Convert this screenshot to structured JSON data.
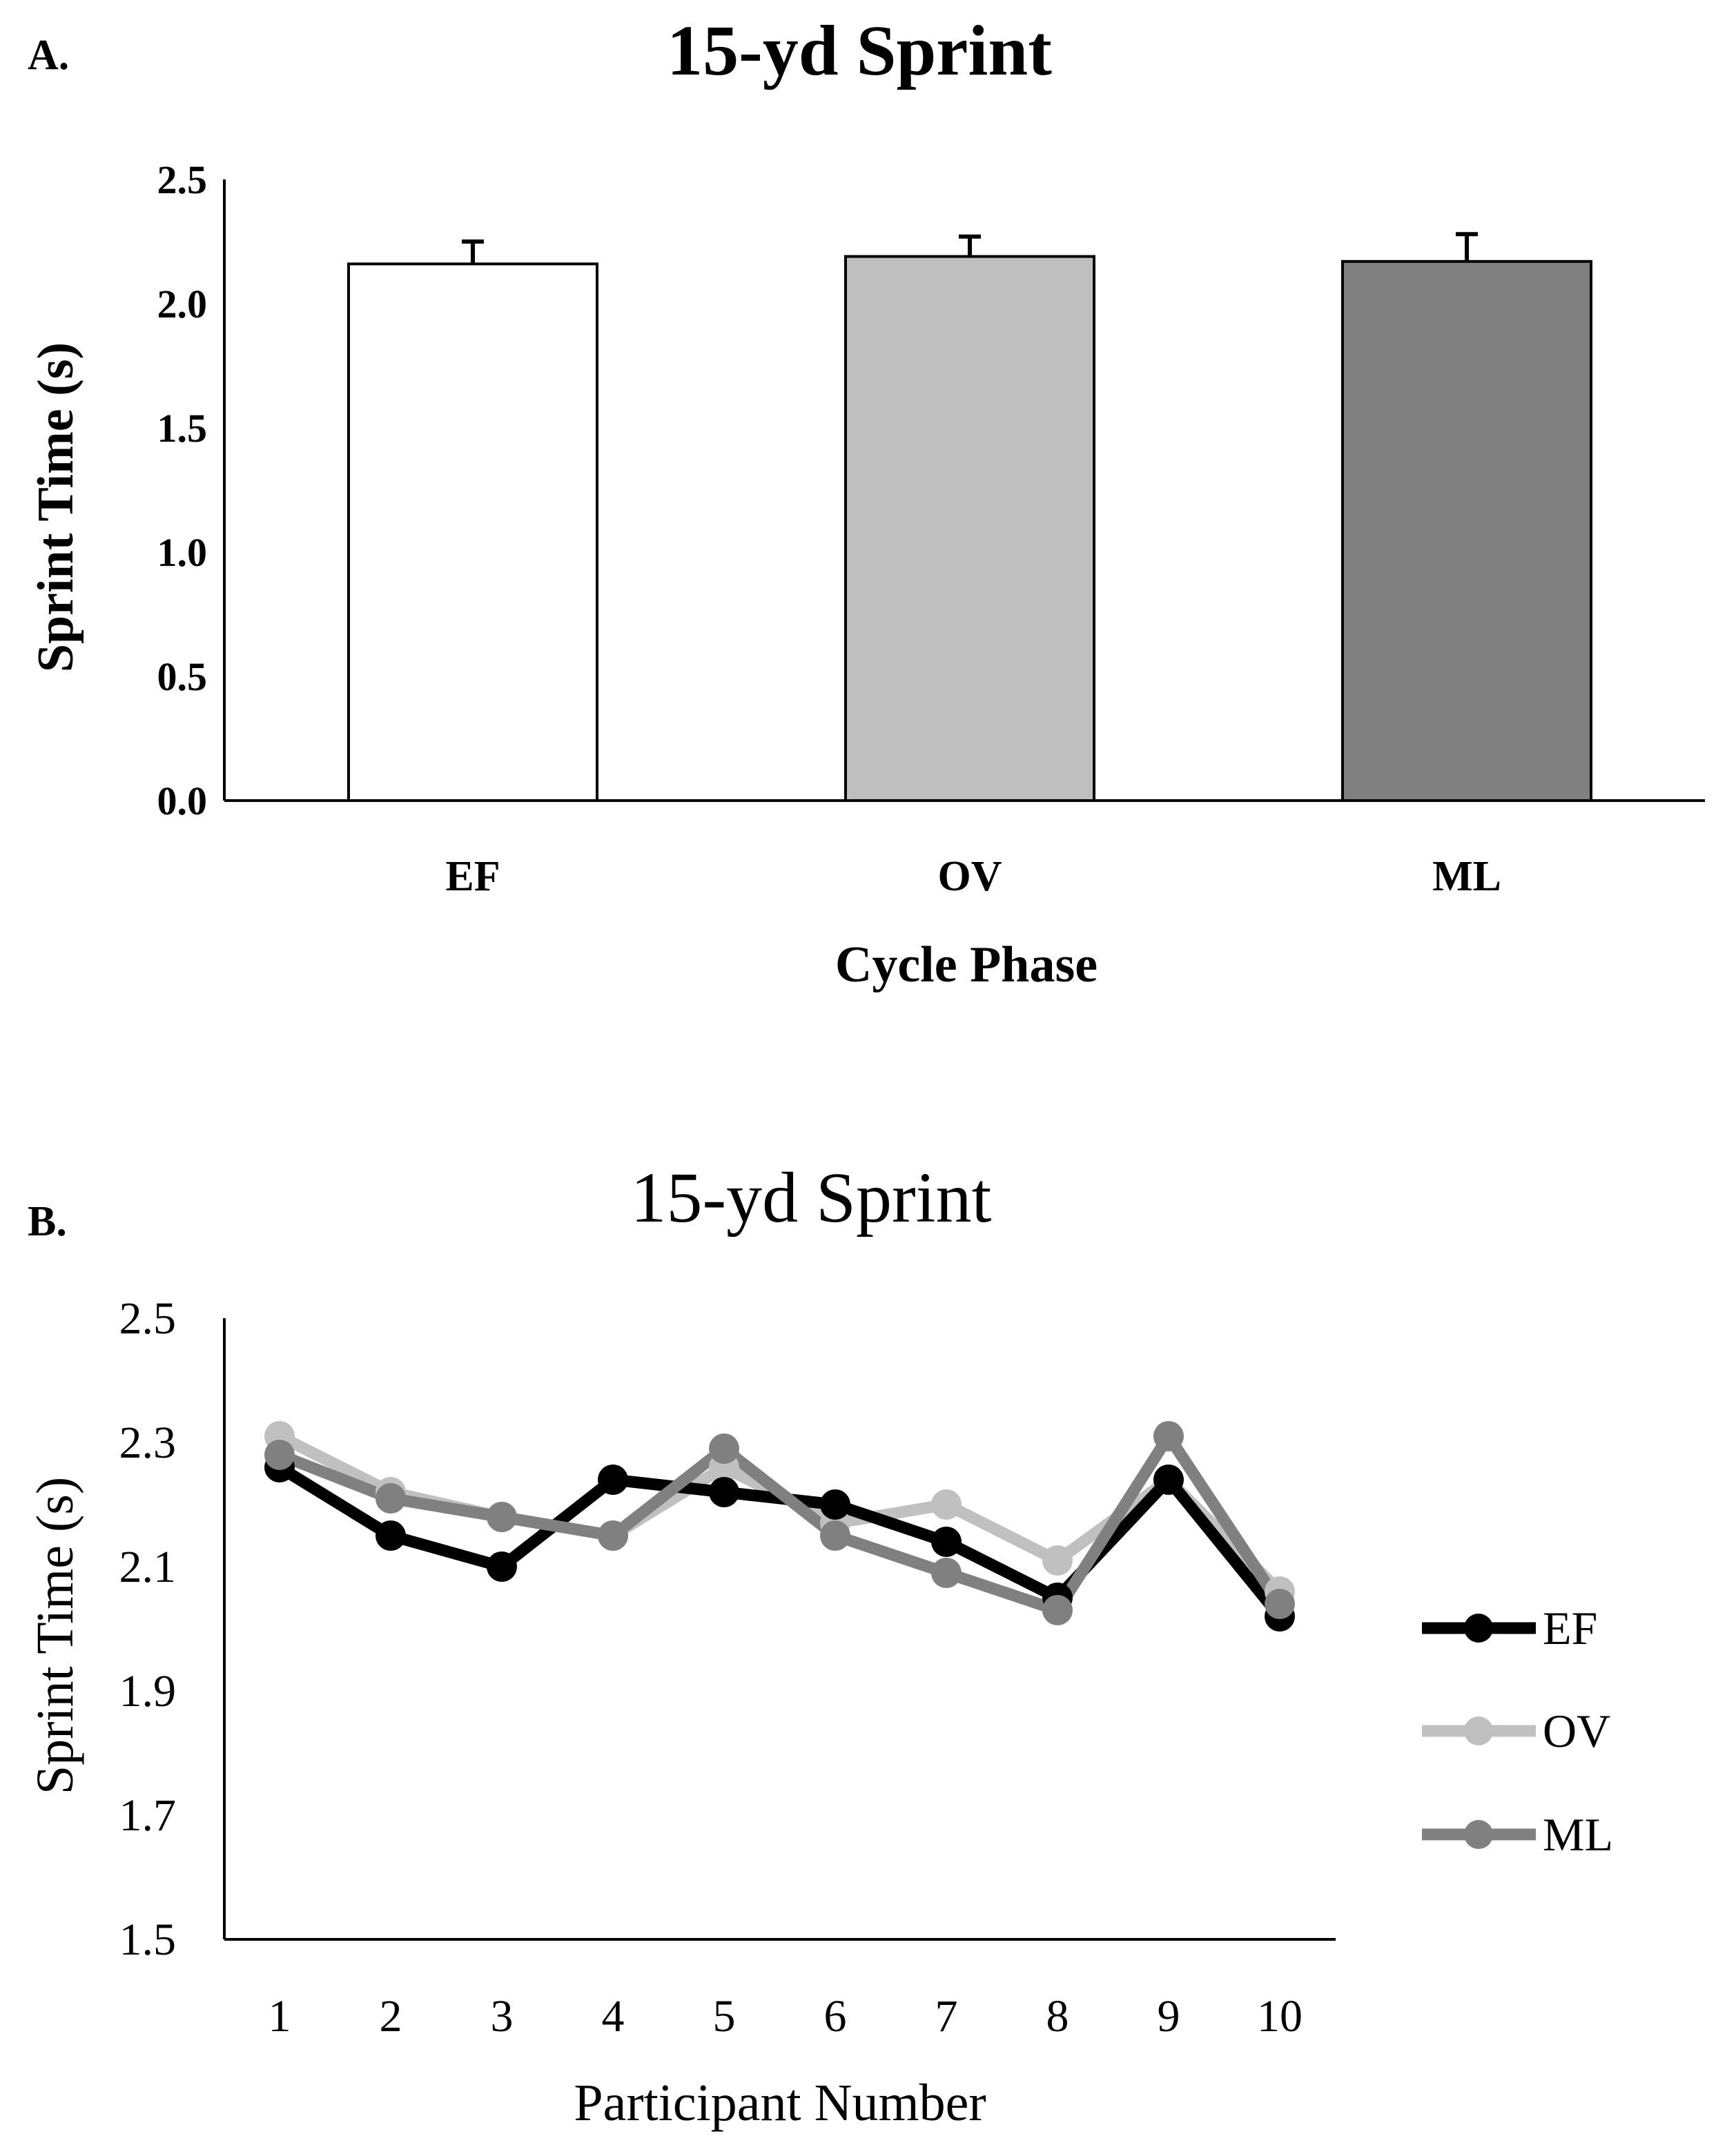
{
  "chart_data": [
    {
      "panel_label": "A.",
      "type": "bar",
      "title": "15-yd Sprint",
      "xlabel": "Cycle Phase",
      "ylabel": "Sprint Time (s)",
      "ylim": [
        0.0,
        2.5
      ],
      "yticks": [
        "0.0",
        "0.5",
        "1.0",
        "1.5",
        "2.0",
        "2.5"
      ],
      "grid": false,
      "categories": [
        "EF",
        "OV",
        "ML"
      ],
      "values": [
        2.16,
        2.19,
        2.17
      ],
      "errors": [
        0.09,
        0.08,
        0.11
      ],
      "colors": [
        "#ffffff",
        "#bfbfbf",
        "#808080"
      ],
      "edge_color": "#000000"
    },
    {
      "panel_label": "B.",
      "type": "line",
      "title": "15-yd Sprint",
      "xlabel": "Participant Number",
      "ylabel": "Sprint Time (s)",
      "ylim": [
        1.5,
        2.5
      ],
      "yticks": [
        "1.5",
        "1.7",
        "1.9",
        "2.1",
        "2.3",
        "2.5"
      ],
      "grid": false,
      "x": [
        "1",
        "2",
        "3",
        "4",
        "5",
        "6",
        "7",
        "8",
        "9",
        "10"
      ],
      "legend_position": "right",
      "series": [
        {
          "name": "EF",
          "color": "#000000",
          "values": [
            2.26,
            2.15,
            2.1,
            2.24,
            2.22,
            2.2,
            2.14,
            2.05,
            2.24,
            2.02
          ]
        },
        {
          "name": "OV",
          "color": "#c0c0c0",
          "values": [
            2.31,
            2.22,
            2.18,
            2.15,
            2.26,
            2.17,
            2.2,
            2.11,
            2.24,
            2.06
          ]
        },
        {
          "name": "ML",
          "color": "#808080",
          "values": [
            2.28,
            2.21,
            2.18,
            2.15,
            2.29,
            2.15,
            2.09,
            2.03,
            2.31,
            2.04
          ]
        }
      ]
    }
  ]
}
